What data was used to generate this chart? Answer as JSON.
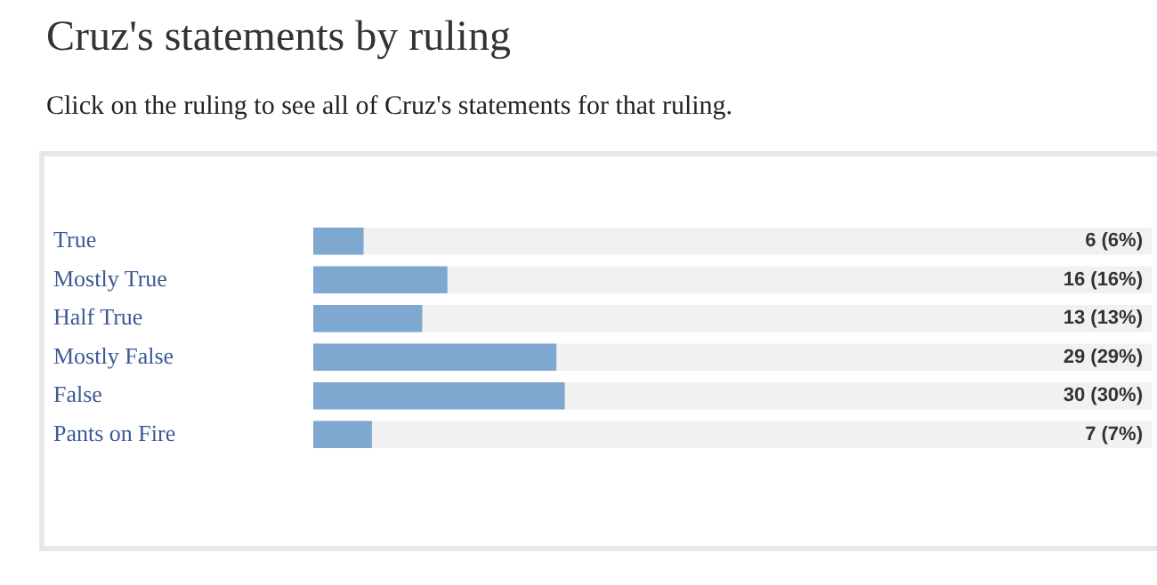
{
  "chart_data": {
    "type": "bar",
    "orientation": "horizontal",
    "title": "Cruz's statements by ruling",
    "subtitle": "Click on the ruling to see all of Cruz's statements for that ruling.",
    "categories": [
      "True",
      "Mostly True",
      "Half True",
      "Mostly False",
      "False",
      "Pants on Fire"
    ],
    "values": [
      6,
      16,
      13,
      29,
      30,
      7
    ],
    "value_labels": [
      "6 (6%)",
      "16 (16%)",
      "13 (13%)",
      "29 (29%)",
      "30 (30%)",
      "7 (7%)"
    ],
    "color": "#7fa8d0",
    "xlim": [
      0,
      100
    ],
    "grid": false,
    "legend": false
  }
}
